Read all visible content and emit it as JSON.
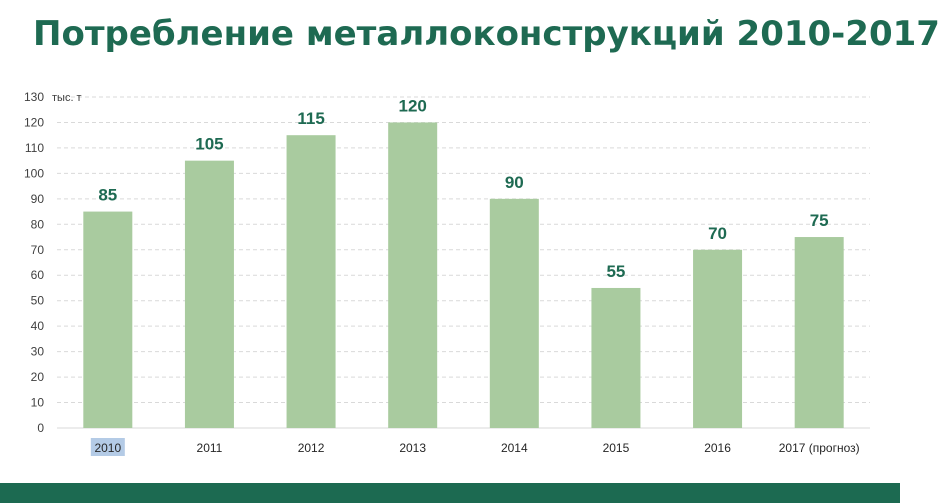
{
  "title": "Потребление металлоконструкций 2010-2017",
  "colors": {
    "title": "#1e6a52",
    "bar": "#a9cb9f",
    "value_label": "#1e6a52",
    "grid": "#d9d9d9",
    "footer": "#1c6a51",
    "highlight": "#b4cbe6"
  },
  "chart_data": {
    "type": "bar",
    "title": "Потребление металлоконструкций 2010-2017",
    "unit_label": "тыс. т",
    "xlabel": "",
    "ylabel": "",
    "categories": [
      "2010",
      "2011",
      "2012",
      "2013",
      "2014",
      "2015",
      "2016",
      "2017 (прогноз)"
    ],
    "values": [
      85,
      105,
      115,
      120,
      90,
      55,
      70,
      75
    ],
    "data_labels": [
      "85",
      "105",
      "115",
      "120",
      "90",
      "55",
      "70",
      "75"
    ],
    "ylim": [
      0,
      130
    ],
    "yticks": [
      0,
      10,
      20,
      30,
      40,
      50,
      60,
      70,
      80,
      90,
      100,
      110,
      120,
      130
    ],
    "grid": true,
    "grid_style": "dashed",
    "legend": "none",
    "highlighted_category": "2010"
  }
}
